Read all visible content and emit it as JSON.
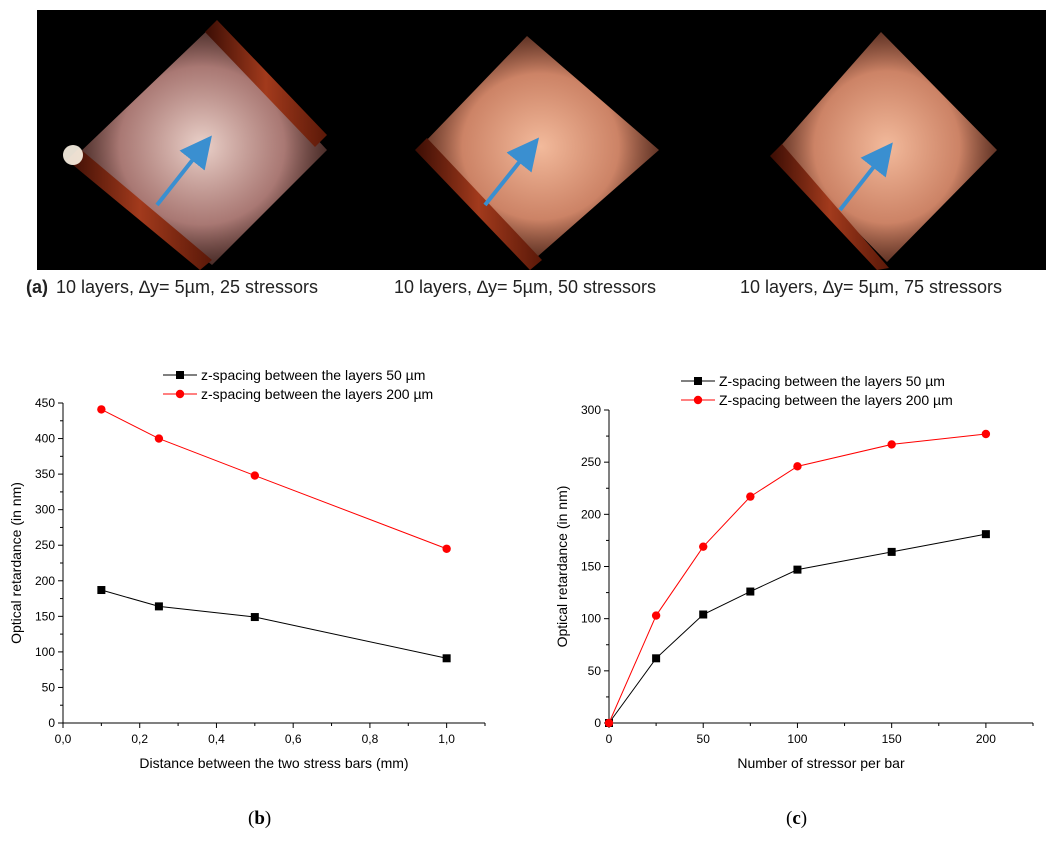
{
  "figure_a": {
    "letter": "(a)",
    "captions": [
      "10 layers, ∆y= 5µm, 25 stressors",
      "10 layers, ∆y= 5µm, 50 stressors",
      "10 layers, ∆y= 5µm, 75 stressors"
    ],
    "colors": {
      "background": "#000000",
      "glow": "#f3a07e",
      "bar": "#8a2e14",
      "arrow": "#3a8fd0"
    }
  },
  "panel_labels": {
    "b_open": "(",
    "b": "b",
    "b_close": ")",
    "c_open": "(",
    "c": "c",
    "c_close": ")"
  },
  "chart_data": [
    {
      "type": "line",
      "panel": "b",
      "xlabel": "Distance between the two stress bars (mm)",
      "ylabel": "Optical retardance (in nm)",
      "xlim": [
        0.0,
        1.1
      ],
      "ylim": [
        0,
        450
      ],
      "xticks": [
        0.0,
        0.2,
        0.4,
        0.6,
        0.8,
        1.0
      ],
      "xtick_labels": [
        "0,0",
        "0,2",
        "0,4",
        "0,6",
        "0,8",
        "1,0"
      ],
      "yticks": [
        0,
        50,
        100,
        150,
        200,
        250,
        300,
        350,
        400,
        450
      ],
      "ytick_labels": [
        "0",
        "50",
        "100",
        "150",
        "200",
        "250",
        "300",
        "350",
        "400",
        "450"
      ],
      "legend_position": "top",
      "grid": false,
      "series": [
        {
          "name": "z-spacing between the layers 50 µm",
          "color": "#000000",
          "marker": "square",
          "x": [
            0.1,
            0.25,
            0.5,
            1.0
          ],
          "y": [
            187,
            164,
            149,
            91
          ]
        },
        {
          "name": "z-spacing between the layers 200 µm",
          "color": "#ff0000",
          "marker": "circle",
          "x": [
            0.1,
            0.25,
            0.5,
            1.0
          ],
          "y": [
            441,
            400,
            348,
            245
          ]
        }
      ]
    },
    {
      "type": "line",
      "panel": "c",
      "xlabel": "Number of stressor per bar",
      "ylabel": "Optical retardance (in nm)",
      "xlim": [
        0,
        225
      ],
      "ylim": [
        0,
        300
      ],
      "xticks": [
        0,
        50,
        100,
        150,
        200
      ],
      "xtick_labels": [
        "0",
        "50",
        "100",
        "150",
        "200"
      ],
      "yticks": [
        0,
        50,
        100,
        150,
        200,
        250,
        300
      ],
      "ytick_labels": [
        "0",
        "50",
        "100",
        "150",
        "200",
        "250",
        "300"
      ],
      "legend_position": "top",
      "grid": false,
      "series": [
        {
          "name": "Z-spacing between the layers  50 µm",
          "color": "#000000",
          "marker": "square",
          "x": [
            0,
            25,
            50,
            75,
            100,
            150,
            200
          ],
          "y": [
            0,
            62,
            104,
            126,
            147,
            164,
            181
          ]
        },
        {
          "name": "Z-spacing between the layers  200 µm",
          "color": "#ff0000",
          "marker": "circle",
          "x": [
            0,
            25,
            50,
            75,
            100,
            150,
            200
          ],
          "y": [
            0,
            103,
            169,
            217,
            246,
            267,
            277
          ]
        }
      ]
    }
  ]
}
